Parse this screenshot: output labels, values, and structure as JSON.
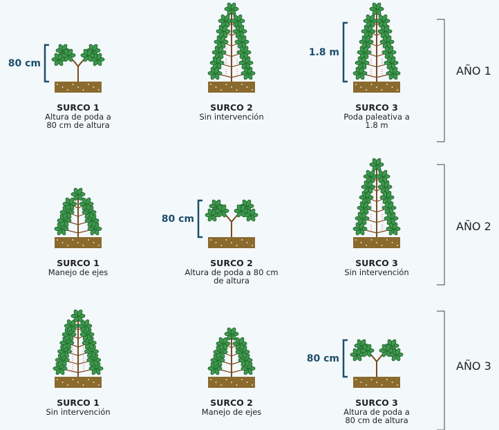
{
  "rows": [
    {
      "year": "AÑO 1",
      "items": [
        {
          "title": "SURCO 1",
          "desc": [
            "Altura de poda a",
            "80 cm de altura"
          ],
          "measure": "80 cm"
        },
        {
          "title": "SURCO 2",
          "desc": [
            "Sin intervención"
          ]
        },
        {
          "title": "SURCO 3",
          "desc": [
            "Poda paleativa a",
            "1.8 m"
          ],
          "measure": "1.8 m"
        }
      ]
    },
    {
      "year": "AÑO 2",
      "items": [
        {
          "title": "SURCO 1",
          "desc": [
            "Manejo de ejes"
          ]
        },
        {
          "title": "SURCO 2",
          "desc": [
            "Altura de poda  a 80 cm",
            "de altura"
          ],
          "measure": "80 cm"
        },
        {
          "title": "SURCO 3",
          "desc": [
            "Sin intervención"
          ]
        }
      ]
    },
    {
      "year": "AÑO 3",
      "items": [
        {
          "title": "SURCO 1",
          "desc": [
            "Sin intervención"
          ]
        },
        {
          "title": "SURCO 2",
          "desc": [
            "Manejo de ejes"
          ]
        },
        {
          "title": "SURCO 3",
          "desc": [
            "Altura de poda a",
            "80 cm de altura"
          ],
          "measure": "80 cm"
        }
      ]
    }
  ]
}
